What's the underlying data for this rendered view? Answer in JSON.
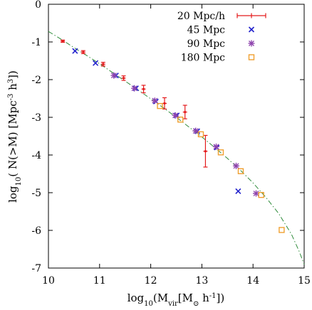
{
  "chart_data": {
    "type": "scatter",
    "xlim": [
      10,
      15
    ],
    "ylim": [
      -7,
      0
    ],
    "x_ticks": [
      "10",
      "11",
      "12",
      "13",
      "14",
      "15"
    ],
    "y_ticks": [
      "0",
      "-1",
      "-2",
      "-3",
      "-4",
      "-5",
      "-6",
      "-7"
    ],
    "ylabel_parts": {
      "pre": "log",
      "sub": "10",
      "mid": "( N(>M) [Mpc",
      "sup1": "-3",
      "mid2": " h",
      "sup2": "3",
      "post": "])"
    },
    "xlabel_parts": {
      "pre": "log",
      "sub1": "10",
      "mid": "(M",
      "sub2": "vir",
      "mid2": "[M",
      "sub3": "⊙",
      "mid3": " h",
      "sup": "-1",
      "post": "])"
    },
    "legend_position": "top-right",
    "series": [
      {
        "name": "20  Mpc/h",
        "marker": "errorbar",
        "color": "#e41a1c",
        "points": [
          {
            "x": 10.28,
            "y": -0.98,
            "err": 0.03
          },
          {
            "x": 10.68,
            "y": -1.27,
            "err": 0.04
          },
          {
            "x": 11.07,
            "y": -1.59,
            "err": 0.05
          },
          {
            "x": 11.47,
            "y": -1.96,
            "err": 0.06
          },
          {
            "x": 11.86,
            "y": -2.25,
            "err": 0.1
          },
          {
            "x": 12.27,
            "y": -2.63,
            "err": 0.15
          },
          {
            "x": 12.67,
            "y": -2.86,
            "err": 0.18
          },
          {
            "x": 13.07,
            "y": -3.9,
            "err": 0.42
          }
        ]
      },
      {
        "name": "45 Mpc",
        "marker": "x",
        "color": "#2222cc",
        "points": [
          {
            "x": 10.52,
            "y": -1.24
          },
          {
            "x": 10.92,
            "y": -1.56
          },
          {
            "x": 11.32,
            "y": -1.89
          },
          {
            "x": 11.71,
            "y": -2.23
          },
          {
            "x": 12.1,
            "y": -2.58
          },
          {
            "x": 12.51,
            "y": -2.95
          },
          {
            "x": 12.91,
            "y": -3.37
          },
          {
            "x": 13.29,
            "y": -3.8
          },
          {
            "x": 13.71,
            "y": -4.96
          }
        ]
      },
      {
        "name": "90 Mpc",
        "marker": "star",
        "color": "#8e44ad",
        "points": [
          {
            "x": 11.28,
            "y": -1.89
          },
          {
            "x": 11.68,
            "y": -2.23
          },
          {
            "x": 12.08,
            "y": -2.56
          },
          {
            "x": 12.48,
            "y": -2.95
          },
          {
            "x": 12.88,
            "y": -3.36
          },
          {
            "x": 13.28,
            "y": -3.78
          },
          {
            "x": 13.67,
            "y": -4.29
          },
          {
            "x": 14.06,
            "y": -5.02
          }
        ]
      },
      {
        "name": "180 Mpc",
        "marker": "square",
        "color": "#f0a030",
        "points": [
          {
            "x": 12.18,
            "y": -2.7
          },
          {
            "x": 12.58,
            "y": -3.06
          },
          {
            "x": 12.98,
            "y": -3.45
          },
          {
            "x": 13.37,
            "y": -3.93
          },
          {
            "x": 13.76,
            "y": -4.43
          },
          {
            "x": 14.16,
            "y": -5.06
          },
          {
            "x": 14.56,
            "y": -5.99
          }
        ]
      }
    ],
    "fit_line": {
      "style": "dash-dot",
      "color": "#2e8b3a",
      "points": [
        [
          10.0,
          -0.72
        ],
        [
          10.25,
          -0.93
        ],
        [
          10.5,
          -1.15
        ],
        [
          10.75,
          -1.36
        ],
        [
          11.0,
          -1.58
        ],
        [
          11.25,
          -1.81
        ],
        [
          11.5,
          -2.04
        ],
        [
          11.75,
          -2.27
        ],
        [
          12.0,
          -2.51
        ],
        [
          12.25,
          -2.75
        ],
        [
          12.5,
          -3.0
        ],
        [
          12.75,
          -3.26
        ],
        [
          13.0,
          -3.52
        ],
        [
          13.25,
          -3.8
        ],
        [
          13.5,
          -4.09
        ],
        [
          13.75,
          -4.4
        ],
        [
          14.0,
          -4.74
        ],
        [
          14.25,
          -5.12
        ],
        [
          14.5,
          -5.55
        ],
        [
          14.75,
          -6.1
        ],
        [
          14.9,
          -6.55
        ],
        [
          15.0,
          -6.9
        ]
      ]
    }
  }
}
